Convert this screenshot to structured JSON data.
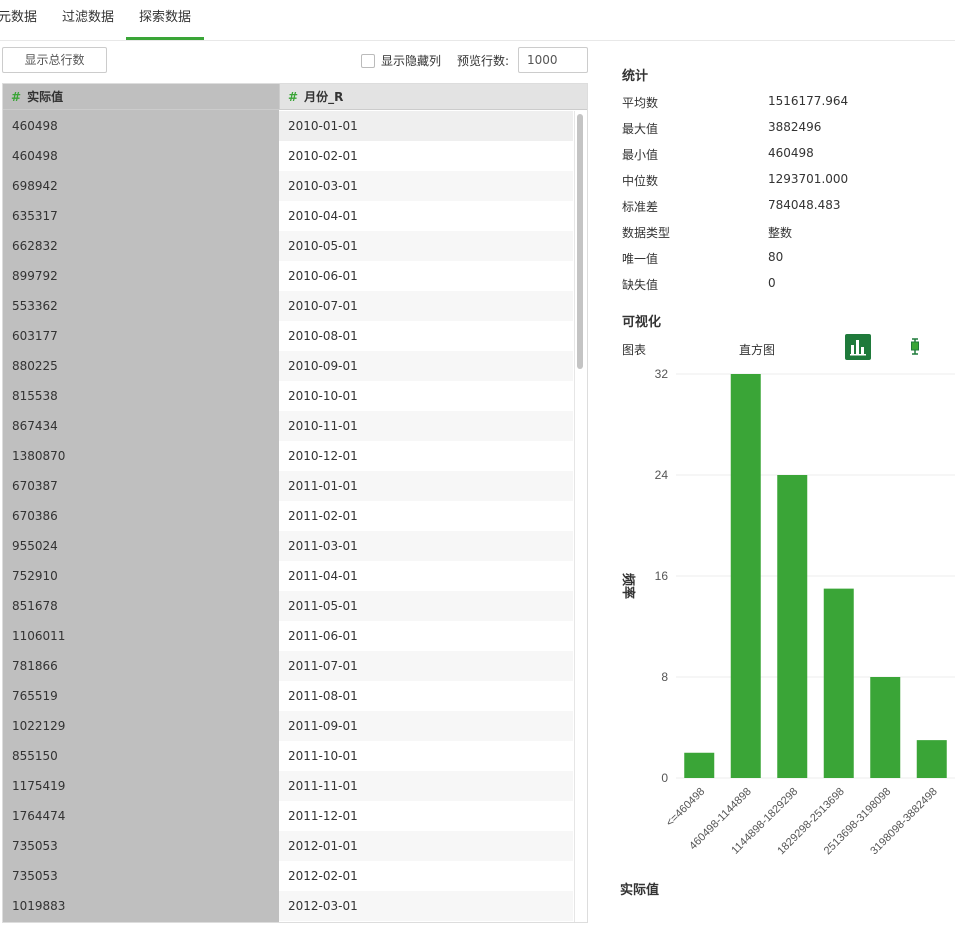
{
  "tabs": [
    {
      "label": "元数据",
      "active": false
    },
    {
      "label": "过滤数据",
      "active": false
    },
    {
      "label": "探索数据",
      "active": true
    }
  ],
  "toolbar": {
    "show_rows_label": "显示总行数",
    "show_hidden_label": "显示隐藏列",
    "show_hidden_checked": false,
    "preview_rows_label": "预览行数:",
    "preview_rows_value": "1000"
  },
  "table": {
    "columns": [
      {
        "type_icon": "#",
        "name": "实际值"
      },
      {
        "type_icon": "#",
        "name": "月份_R"
      }
    ],
    "rows": [
      [
        "460498",
        "2010-01-01"
      ],
      [
        "460498",
        "2010-02-01"
      ],
      [
        "698942",
        "2010-03-01"
      ],
      [
        "635317",
        "2010-04-01"
      ],
      [
        "662832",
        "2010-05-01"
      ],
      [
        "899792",
        "2010-06-01"
      ],
      [
        "553362",
        "2010-07-01"
      ],
      [
        "603177",
        "2010-08-01"
      ],
      [
        "880225",
        "2010-09-01"
      ],
      [
        "815538",
        "2010-10-01"
      ],
      [
        "867434",
        "2010-11-01"
      ],
      [
        "1380870",
        "2010-12-01"
      ],
      [
        "670387",
        "2011-01-01"
      ],
      [
        "670386",
        "2011-02-01"
      ],
      [
        "955024",
        "2011-03-01"
      ],
      [
        "752910",
        "2011-04-01"
      ],
      [
        "851678",
        "2011-05-01"
      ],
      [
        "1106011",
        "2011-06-01"
      ],
      [
        "781866",
        "2011-07-01"
      ],
      [
        "765519",
        "2011-08-01"
      ],
      [
        "1022129",
        "2011-09-01"
      ],
      [
        "855150",
        "2011-10-01"
      ],
      [
        "1175419",
        "2011-11-01"
      ],
      [
        "1764474",
        "2011-12-01"
      ],
      [
        "735053",
        "2012-01-01"
      ],
      [
        "735053",
        "2012-02-01"
      ],
      [
        "1019883",
        "2012-03-01"
      ]
    ]
  },
  "stats": {
    "title": "统计",
    "items": [
      {
        "label": "平均数",
        "value": "1516177.964"
      },
      {
        "label": "最大值",
        "value": "3882496"
      },
      {
        "label": "最小值",
        "value": "460498"
      },
      {
        "label": "中位数",
        "value": "1293701.000"
      },
      {
        "label": "标准差",
        "value": "784048.483"
      },
      {
        "label": "数据类型",
        "value": "整数"
      },
      {
        "label": "唯一值",
        "value": "80"
      },
      {
        "label": "缺失值",
        "value": "0"
      }
    ]
  },
  "viz": {
    "title": "可视化",
    "chart_label": "图表",
    "chart_type": "直方图",
    "histogram_icon": "bar-chart-icon",
    "boxplot_icon": "boxplot-icon",
    "accent": "#3aa537",
    "accent_dark": "#1f7a3b"
  },
  "chart_data": {
    "type": "bar",
    "categories": [
      "<=460498",
      "460498-1144898",
      "1144898-1829298",
      "1829298-2513698",
      "2513698-3198098",
      "3198098-3882498"
    ],
    "values": [
      2,
      32,
      24,
      15,
      8,
      3
    ],
    "yticks": [
      0,
      8,
      16,
      24,
      32
    ],
    "ylim": [
      0,
      32
    ],
    "ylabel": "频率",
    "xlabel": "实际值",
    "title": "",
    "bar_color": "#3aa537"
  }
}
